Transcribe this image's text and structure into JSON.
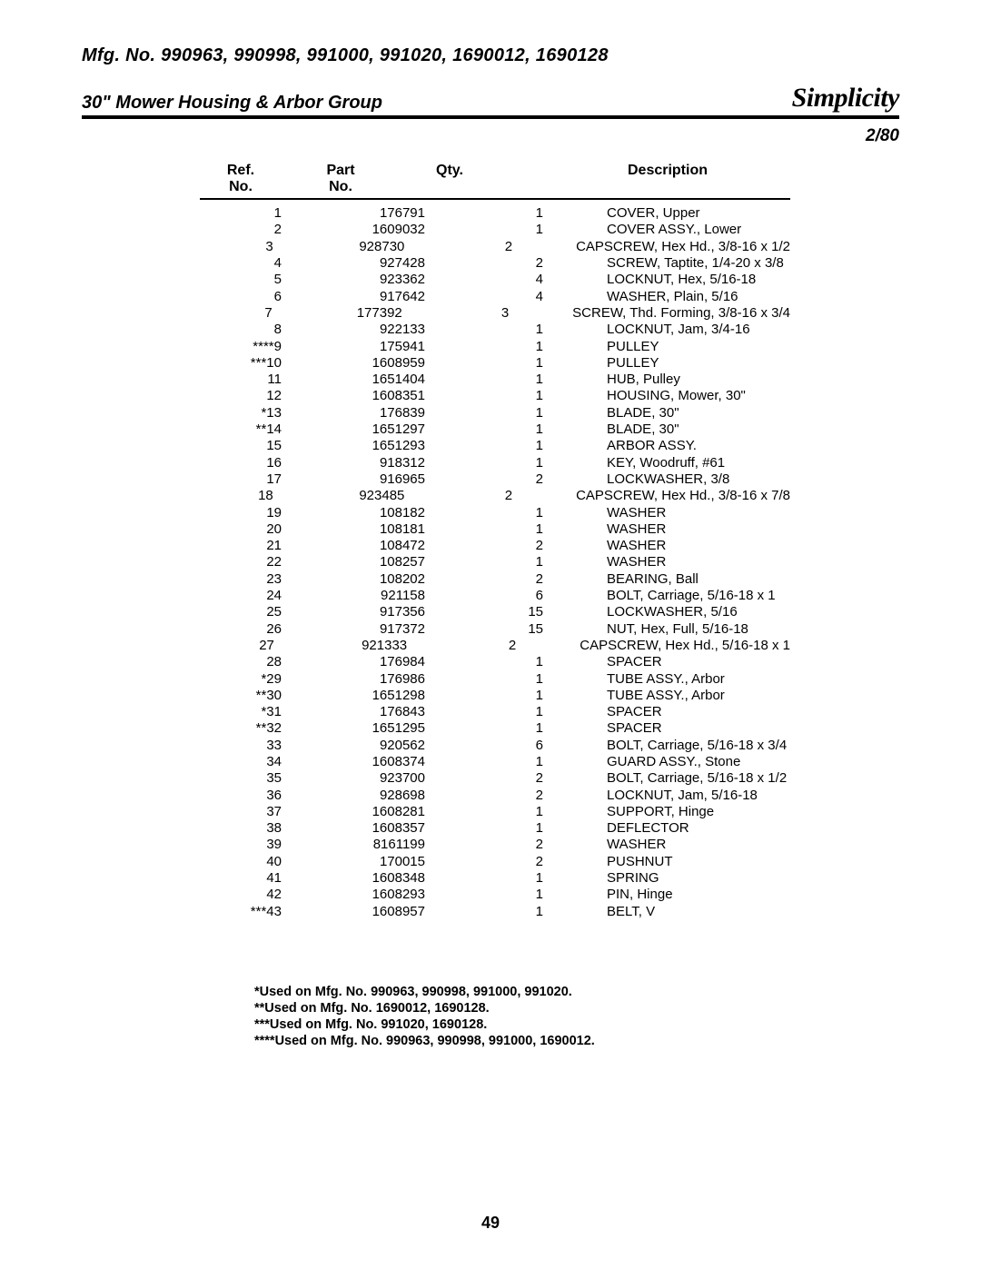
{
  "header": {
    "mfg_line": "Mfg. No. 990963, 990998, 991000, 991020, 1690012, 1690128",
    "title": "30\" Mower Housing & Arbor Group",
    "brand": "Simplicity",
    "date": "2/80"
  },
  "table": {
    "head": {
      "ref_l1": "Ref.",
      "ref_l2": "No.",
      "part_l1": "Part",
      "part_l2": "No.",
      "qty": "Qty.",
      "desc": "Description"
    },
    "rows": [
      {
        "ref": "1",
        "part": "176791",
        "qty": "1",
        "desc": "COVER, Upper"
      },
      {
        "ref": "2",
        "part": "1609032",
        "qty": "1",
        "desc": "COVER ASSY., Lower"
      },
      {
        "ref": "3",
        "part": "928730",
        "qty": "2",
        "desc": "CAPSCREW, Hex Hd., 3/8-16 x 1/2"
      },
      {
        "ref": "4",
        "part": "927428",
        "qty": "2",
        "desc": "SCREW, Taptite, 1/4-20 x 3/8"
      },
      {
        "ref": "5",
        "part": "923362",
        "qty": "4",
        "desc": "LOCKNUT, Hex, 5/16-18"
      },
      {
        "ref": "6",
        "part": "917642",
        "qty": "4",
        "desc": "WASHER, Plain, 5/16"
      },
      {
        "ref": "7",
        "part": "177392",
        "qty": "3",
        "desc": "SCREW, Thd. Forming, 3/8-16 x 3/4"
      },
      {
        "ref": "8",
        "part": "922133",
        "qty": "1",
        "desc": "LOCKNUT, Jam, 3/4-16"
      },
      {
        "ref": "****9",
        "part": "175941",
        "qty": "1",
        "desc": "PULLEY"
      },
      {
        "ref": "***10",
        "part": "1608959",
        "qty": "1",
        "desc": "PULLEY"
      },
      {
        "ref": "11",
        "part": "1651404",
        "qty": "1",
        "desc": "HUB, Pulley"
      },
      {
        "ref": "12",
        "part": "1608351",
        "qty": "1",
        "desc": "HOUSING, Mower, 30\""
      },
      {
        "ref": "*13",
        "part": "176839",
        "qty": "1",
        "desc": "BLADE, 30\""
      },
      {
        "ref": "**14",
        "part": "1651297",
        "qty": "1",
        "desc": "BLADE, 30\""
      },
      {
        "ref": "15",
        "part": "1651293",
        "qty": "1",
        "desc": "ARBOR ASSY."
      },
      {
        "ref": "16",
        "part": "918312",
        "qty": "1",
        "desc": "KEY, Woodruff, #61"
      },
      {
        "ref": "17",
        "part": "916965",
        "qty": "2",
        "desc": "LOCKWASHER, 3/8"
      },
      {
        "ref": "18",
        "part": "923485",
        "qty": "2",
        "desc": "CAPSCREW, Hex Hd., 3/8-16 x 7/8"
      },
      {
        "ref": "19",
        "part": "108182",
        "qty": "1",
        "desc": "WASHER"
      },
      {
        "ref": "20",
        "part": "108181",
        "qty": "1",
        "desc": "WASHER"
      },
      {
        "ref": "21",
        "part": "108472",
        "qty": "2",
        "desc": "WASHER"
      },
      {
        "ref": "22",
        "part": "108257",
        "qty": "1",
        "desc": "WASHER"
      },
      {
        "ref": "23",
        "part": "108202",
        "qty": "2",
        "desc": "BEARING, Ball"
      },
      {
        "ref": "24",
        "part": "921158",
        "qty": "6",
        "desc": "BOLT, Carriage, 5/16-18 x 1"
      },
      {
        "ref": "25",
        "part": "917356",
        "qty": "15",
        "desc": "LOCKWASHER, 5/16"
      },
      {
        "ref": "26",
        "part": "917372",
        "qty": "15",
        "desc": "NUT, Hex, Full, 5/16-18"
      },
      {
        "ref": "27",
        "part": "921333",
        "qty": "2",
        "desc": "CAPSCREW, Hex Hd., 5/16-18 x 1"
      },
      {
        "ref": "28",
        "part": "176984",
        "qty": "1",
        "desc": "SPACER"
      },
      {
        "ref": "*29",
        "part": "176986",
        "qty": "1",
        "desc": "TUBE ASSY., Arbor"
      },
      {
        "ref": "**30",
        "part": "1651298",
        "qty": "1",
        "desc": "TUBE ASSY., Arbor"
      },
      {
        "ref": "*31",
        "part": "176843",
        "qty": "1",
        "desc": "SPACER"
      },
      {
        "ref": "**32",
        "part": "1651295",
        "qty": "1",
        "desc": "SPACER"
      },
      {
        "ref": "33",
        "part": "920562",
        "qty": "6",
        "desc": "BOLT, Carriage, 5/16-18 x 3/4"
      },
      {
        "ref": "34",
        "part": "1608374",
        "qty": "1",
        "desc": "GUARD ASSY., Stone"
      },
      {
        "ref": "35",
        "part": "923700",
        "qty": "2",
        "desc": "BOLT, Carriage, 5/16-18 x 1/2"
      },
      {
        "ref": "36",
        "part": "928698",
        "qty": "2",
        "desc": "LOCKNUT, Jam, 5/16-18"
      },
      {
        "ref": "37",
        "part": "1608281",
        "qty": "1",
        "desc": "SUPPORT, Hinge"
      },
      {
        "ref": "38",
        "part": "1608357",
        "qty": "1",
        "desc": "DEFLECTOR"
      },
      {
        "ref": "39",
        "part": "8161199",
        "qty": "2",
        "desc": "WASHER"
      },
      {
        "ref": "40",
        "part": "170015",
        "qty": "2",
        "desc": "PUSHNUT"
      },
      {
        "ref": "41",
        "part": "1608348",
        "qty": "1",
        "desc": "SPRING"
      },
      {
        "ref": "42",
        "part": "1608293",
        "qty": "1",
        "desc": "PIN, Hinge"
      },
      {
        "ref": "***43",
        "part": "1608957",
        "qty": "1",
        "desc": "BELT, V"
      }
    ]
  },
  "footnotes": [
    "*Used on Mfg. No. 990963, 990998, 991000, 991020.",
    "**Used on Mfg. No. 1690012, 1690128.",
    "***Used on Mfg. No. 991020, 1690128.",
    "****Used on Mfg. No. 990963, 990998, 991000, 1690012."
  ],
  "page_number": "49"
}
